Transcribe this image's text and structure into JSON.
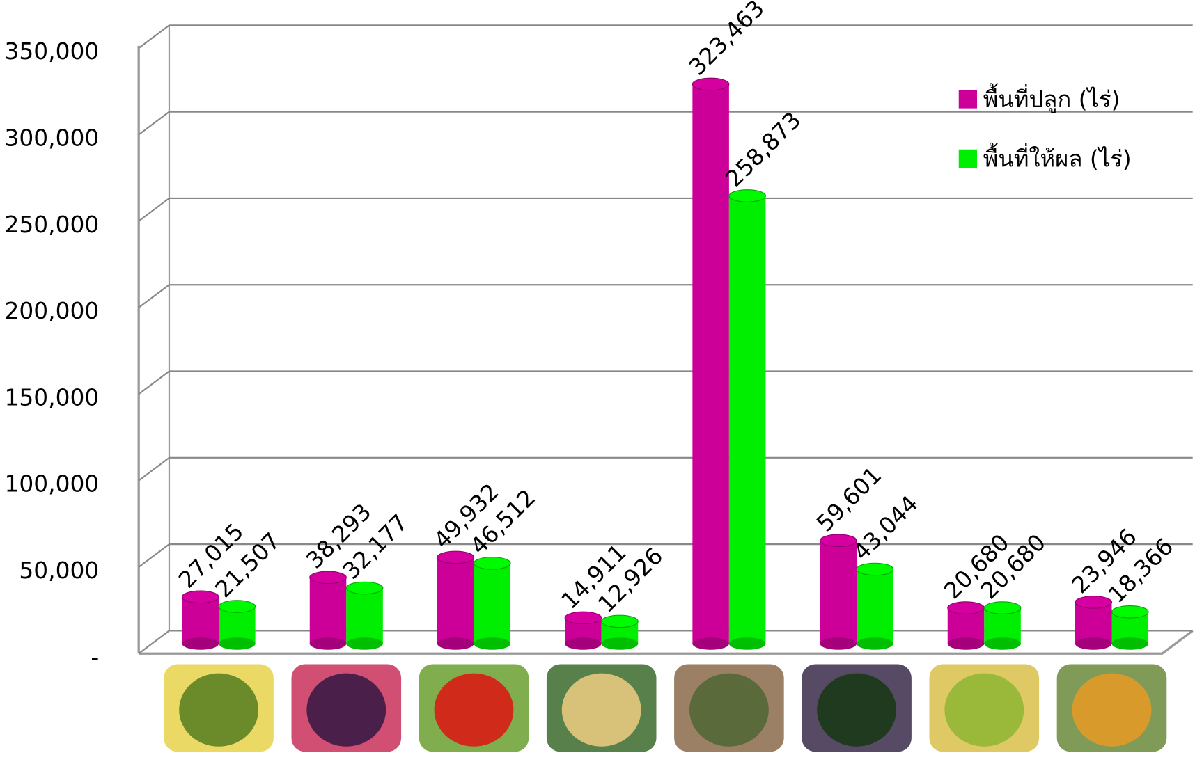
{
  "chart_data": {
    "type": "bar",
    "categories": [
      null,
      null,
      null,
      null,
      null,
      null,
      null,
      null
    ],
    "series": [
      {
        "name": "พื้นที่ปลูก (ไร่)",
        "color": "#cc0099",
        "values": [
          27015,
          38293,
          49932,
          14911,
          323463,
          59601,
          20680,
          23946
        ],
        "value_labels": [
          "27,015",
          "38,293",
          "49,932",
          "14,911",
          "323,463",
          "59,601",
          "20,680",
          "23,946"
        ]
      },
      {
        "name": "พื้นที่ให้ผล (ไร่)",
        "color": "#00ee00",
        "values": [
          21507,
          32177,
          46512,
          12926,
          258873,
          43044,
          20680,
          18366
        ],
        "value_labels": [
          "21,507",
          "32,177",
          "46,512",
          "12,926",
          "258,873",
          "43,044",
          "20,680",
          "18,366"
        ]
      }
    ],
    "ylim": [
      0,
      350000
    ],
    "yticks": [
      {
        "value": 0,
        "label": "-"
      },
      {
        "value": 50000,
        "label": "50,000"
      },
      {
        "value": 100000,
        "label": "100,000"
      },
      {
        "value": 150000,
        "label": "150,000"
      },
      {
        "value": 200000,
        "label": "200,000"
      },
      {
        "value": 250000,
        "label": "250,000"
      },
      {
        "value": 300000,
        "label": "300,000"
      },
      {
        "value": 350000,
        "label": "350,000"
      }
    ],
    "grid": true,
    "legend": "top-right"
  }
}
